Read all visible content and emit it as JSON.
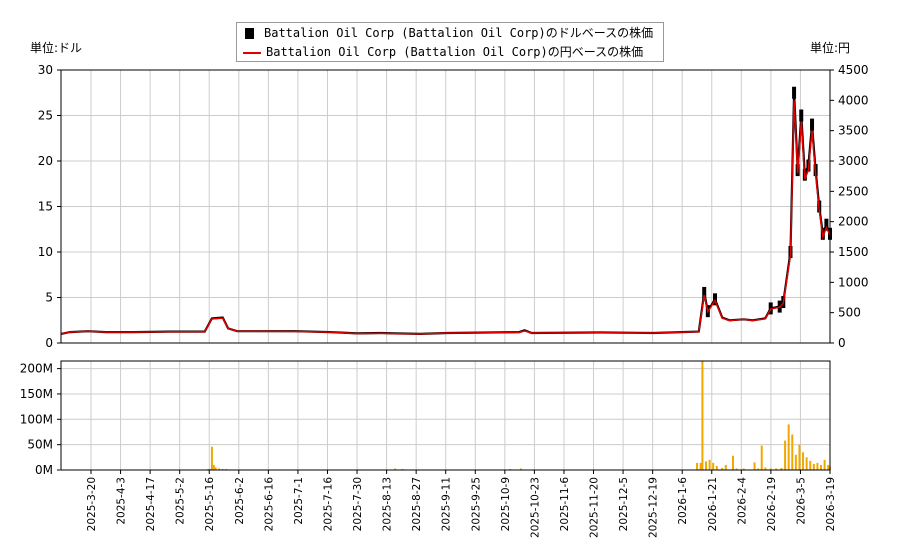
{
  "legend": {
    "usd_label": "Battalion Oil Corp (Battalion Oil Corp)のドルベースの株価",
    "jpy_label": "Battalion Oil Corp (Battalion Oil Corp)の円ベースの株価"
  },
  "units": {
    "left": "単位:ドル",
    "right": "単位:円"
  },
  "chart_data": [
    {
      "type": "candlestick+line",
      "x_tick_labels": [
        "2025-3-20",
        "2025-4-3",
        "2025-4-17",
        "2025-5-2",
        "2025-5-16",
        "2025-6-2",
        "2025-6-16",
        "2025-7-1",
        "2025-7-16",
        "2025-7-30",
        "2025-8-13",
        "2025-8-27",
        "2025-9-11",
        "2025-9-25",
        "2025-10-9",
        "2025-10-23",
        "2025-11-6",
        "2025-11-20",
        "2025-12-5",
        "2025-12-19",
        "2026-1-6",
        "2026-1-21",
        "2026-2-4",
        "2026-2-19",
        "2026-3-5",
        "2026-3-19"
      ],
      "y_left": {
        "ticks": [
          0,
          5,
          10,
          15,
          20,
          25,
          30
        ],
        "ylim": [
          0,
          30
        ]
      },
      "y_right": {
        "ticks": [
          0,
          500,
          1000,
          1500,
          2000,
          2500,
          3000,
          3500,
          4000,
          4500
        ],
        "ylim": [
          0,
          4500
        ]
      },
      "grid": true,
      "legend_position": "top-center",
      "colors": {
        "usd": "#000000",
        "jpy": "#e00000"
      },
      "usd_price_points": [
        [
          0,
          1.0
        ],
        [
          5,
          1.2
        ],
        [
          15,
          1.3
        ],
        [
          25,
          1.2
        ],
        [
          40,
          1.2
        ],
        [
          60,
          1.25
        ],
        [
          80,
          1.25
        ],
        [
          84,
          2.7
        ],
        [
          90,
          2.8
        ],
        [
          93,
          1.6
        ],
        [
          98,
          1.3
        ],
        [
          130,
          1.3
        ],
        [
          150,
          1.2
        ],
        [
          165,
          1.05
        ],
        [
          178,
          1.1
        ],
        [
          185,
          1.05
        ],
        [
          200,
          1.0
        ],
        [
          215,
          1.1
        ],
        [
          240,
          1.15
        ],
        [
          255,
          1.2
        ],
        [
          258,
          1.4
        ],
        [
          262,
          1.1
        ],
        [
          300,
          1.15
        ],
        [
          330,
          1.1
        ],
        [
          345,
          1.2
        ],
        [
          355,
          1.25
        ],
        [
          358,
          5.5
        ],
        [
          360,
          3.5
        ],
        [
          364,
          4.8
        ],
        [
          368,
          2.8
        ],
        [
          372,
          2.5
        ],
        [
          380,
          2.6
        ],
        [
          385,
          2.5
        ],
        [
          392,
          2.7
        ],
        [
          395,
          3.8
        ],
        [
          400,
          4.0
        ],
        [
          402,
          4.5
        ],
        [
          406,
          10.0
        ],
        [
          408,
          27.5
        ],
        [
          410,
          19.0
        ],
        [
          412,
          25.0
        ],
        [
          414,
          18.5
        ],
        [
          416,
          19.5
        ],
        [
          418,
          24.0
        ],
        [
          420,
          19.0
        ],
        [
          422,
          15.0
        ],
        [
          424,
          12.0
        ],
        [
          426,
          13.0
        ],
        [
          428,
          12.0
        ]
      ],
      "jpy_price_points": [
        [
          0,
          150
        ],
        [
          5,
          180
        ],
        [
          15,
          195
        ],
        [
          25,
          180
        ],
        [
          40,
          180
        ],
        [
          60,
          185
        ],
        [
          80,
          185
        ],
        [
          84,
          395
        ],
        [
          90,
          410
        ],
        [
          93,
          240
        ],
        [
          98,
          195
        ],
        [
          130,
          190
        ],
        [
          150,
          180
        ],
        [
          165,
          155
        ],
        [
          178,
          160
        ],
        [
          185,
          155
        ],
        [
          200,
          150
        ],
        [
          215,
          165
        ],
        [
          240,
          170
        ],
        [
          255,
          175
        ],
        [
          258,
          200
        ],
        [
          262,
          165
        ],
        [
          300,
          170
        ],
        [
          330,
          165
        ],
        [
          345,
          180
        ],
        [
          355,
          185
        ],
        [
          358,
          790
        ],
        [
          360,
          520
        ],
        [
          364,
          700
        ],
        [
          368,
          410
        ],
        [
          372,
          370
        ],
        [
          380,
          390
        ],
        [
          385,
          370
        ],
        [
          392,
          400
        ],
        [
          395,
          560
        ],
        [
          400,
          590
        ],
        [
          402,
          660
        ],
        [
          406,
          1450
        ],
        [
          408,
          4000
        ],
        [
          410,
          2800
        ],
        [
          412,
          3650
        ],
        [
          414,
          2700
        ],
        [
          416,
          2850
        ],
        [
          418,
          3500
        ],
        [
          420,
          2780
        ],
        [
          422,
          2200
        ],
        [
          424,
          1750
        ],
        [
          426,
          1900
        ],
        [
          428,
          1780
        ]
      ],
      "x_domain": [
        0,
        428
      ]
    },
    {
      "type": "bar",
      "y_tick_labels": [
        "0M",
        "50M",
        "100M",
        "150M",
        "200M"
      ],
      "ylim": [
        0,
        215
      ],
      "unit": "M",
      "color": "#f0a800",
      "volume_points": [
        [
          0,
          0.5
        ],
        [
          10,
          0.5
        ],
        [
          20,
          0.5
        ],
        [
          40,
          0.5
        ],
        [
          60,
          0.5
        ],
        [
          82,
          2
        ],
        [
          83,
          2
        ],
        [
          84,
          46
        ],
        [
          85,
          10
        ],
        [
          86,
          5
        ],
        [
          88,
          3
        ],
        [
          90,
          2
        ],
        [
          92,
          2
        ],
        [
          95,
          1
        ],
        [
          110,
          0.5
        ],
        [
          150,
          0.5
        ],
        [
          186,
          3
        ],
        [
          190,
          2
        ],
        [
          250,
          2
        ],
        [
          256,
          3
        ],
        [
          300,
          0.5
        ],
        [
          354,
          14
        ],
        [
          356,
          14
        ],
        [
          357,
          215
        ],
        [
          359,
          17
        ],
        [
          361,
          20
        ],
        [
          363,
          14
        ],
        [
          365,
          8
        ],
        [
          368,
          4
        ],
        [
          370,
          10
        ],
        [
          374,
          28
        ],
        [
          376,
          3
        ],
        [
          380,
          3
        ],
        [
          386,
          15
        ],
        [
          388,
          3
        ],
        [
          390,
          48
        ],
        [
          392,
          5
        ],
        [
          395,
          3
        ],
        [
          398,
          3
        ],
        [
          401,
          4
        ],
        [
          403,
          58
        ],
        [
          405,
          90
        ],
        [
          407,
          70
        ],
        [
          409,
          30
        ],
        [
          411,
          50
        ],
        [
          413,
          35
        ],
        [
          415,
          25
        ],
        [
          417,
          18
        ],
        [
          419,
          12
        ],
        [
          421,
          14
        ],
        [
          423,
          10
        ],
        [
          425,
          20
        ],
        [
          427,
          10
        ],
        [
          428,
          6
        ]
      ]
    }
  ]
}
